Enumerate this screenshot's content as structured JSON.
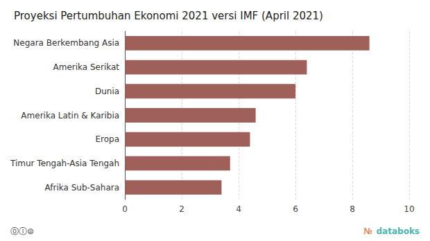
{
  "chart_data": {
    "type": "bar",
    "orientation": "horizontal",
    "title": "Proyeksi Pertumbuhan Ekonomi 2021 versi IMF (April 2021)",
    "categories": [
      "Afrika Sub-Sahara",
      "Timur Tengah-Asia Tengah",
      "Eropa",
      "Amerika Latin & Karibia",
      "Dunia",
      "Amerika Serikat",
      "Negara Berkembang Asia"
    ],
    "values": [
      3.4,
      3.7,
      4.4,
      4.6,
      6.0,
      6.4,
      8.6
    ],
    "color": "#9e6058",
    "xlim": [
      0,
      10
    ],
    "xticks": [
      0,
      2,
      4,
      6,
      8,
      10
    ],
    "grid": true,
    "annotations": [
      {
        "text": "⓪Ⓘ⊜"
      },
      {
        "text": "№",
        "color": "#e8632a"
      },
      {
        "text": "databoks",
        "color": "#4ab5b0"
      }
    ]
  }
}
